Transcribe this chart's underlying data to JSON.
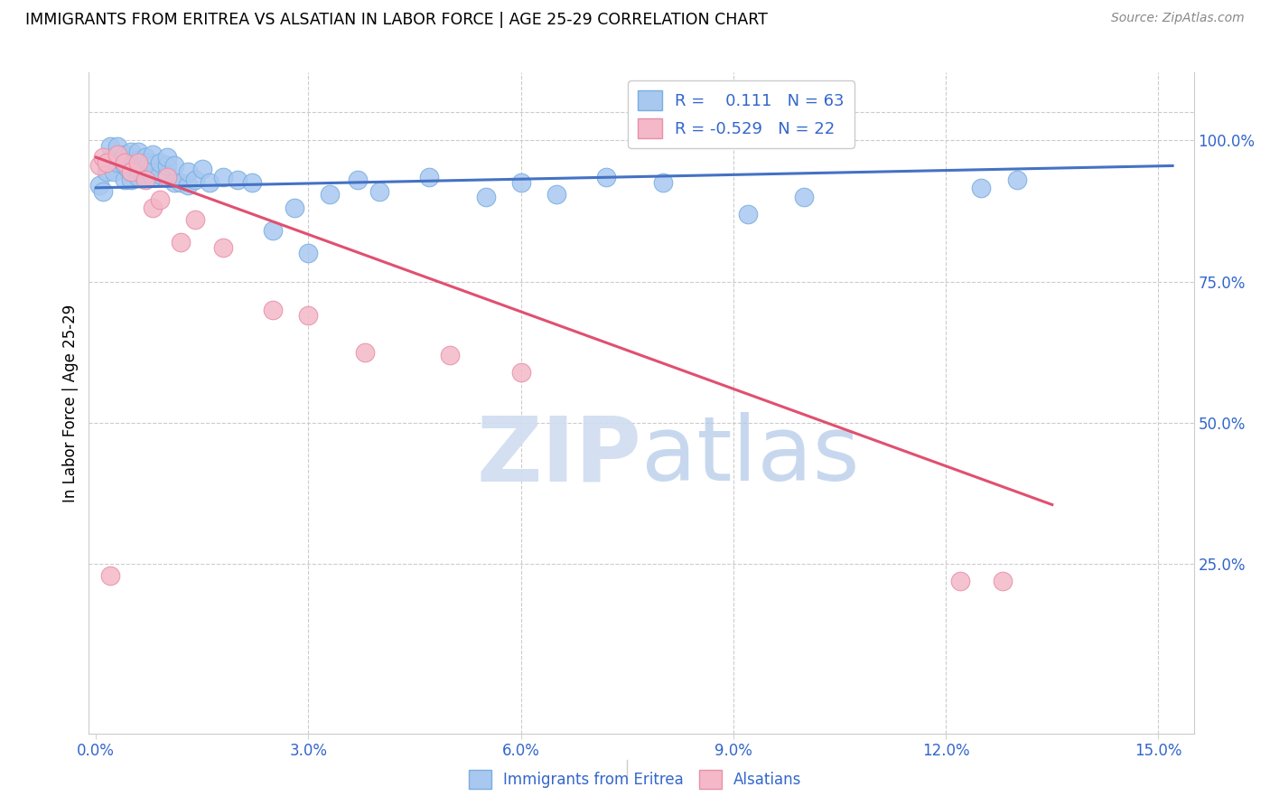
{
  "title": "IMMIGRANTS FROM ERITREA VS ALSATIAN IN LABOR FORCE | AGE 25-29 CORRELATION CHART",
  "source": "Source: ZipAtlas.com",
  "ylabel": "In Labor Force | Age 25-29",
  "xlim": [
    -0.001,
    0.155
  ],
  "ylim": [
    -0.05,
    1.12
  ],
  "xticks": [
    0.0,
    0.03,
    0.06,
    0.09,
    0.12,
    0.15
  ],
  "xticklabels": [
    "0.0%",
    "3.0%",
    "6.0%",
    "9.0%",
    "12.0%",
    "15.0%"
  ],
  "yticks": [
    0.25,
    0.5,
    0.75,
    1.0
  ],
  "yticklabels": [
    "25.0%",
    "50.0%",
    "75.0%",
    "100.0%"
  ],
  "blue_r": "0.111",
  "blue_n": "63",
  "pink_r": "-0.529",
  "pink_n": "22",
  "blue_color": "#A8C8F0",
  "pink_color": "#F4B8C8",
  "blue_edge_color": "#7AAEE0",
  "pink_edge_color": "#E890A8",
  "blue_line_color": "#4472C4",
  "pink_line_color": "#E05070",
  "grid_color": "#CCCCCC",
  "watermark_color": "#D0DCF0",
  "blue_dots_x": [
    0.0005,
    0.001,
    0.0015,
    0.002,
    0.002,
    0.0025,
    0.003,
    0.003,
    0.003,
    0.0035,
    0.004,
    0.004,
    0.004,
    0.0045,
    0.005,
    0.005,
    0.005,
    0.005,
    0.0055,
    0.006,
    0.006,
    0.006,
    0.006,
    0.0065,
    0.007,
    0.007,
    0.007,
    0.0075,
    0.008,
    0.008,
    0.008,
    0.009,
    0.009,
    0.01,
    0.01,
    0.01,
    0.011,
    0.011,
    0.012,
    0.013,
    0.013,
    0.014,
    0.015,
    0.016,
    0.018,
    0.02,
    0.022,
    0.025,
    0.028,
    0.03,
    0.033,
    0.037,
    0.04,
    0.047,
    0.055,
    0.06,
    0.065,
    0.072,
    0.08,
    0.092,
    0.1,
    0.125,
    0.13
  ],
  "blue_dots_y": [
    0.92,
    0.91,
    0.945,
    0.965,
    0.99,
    0.945,
    0.96,
    0.975,
    0.99,
    0.965,
    0.93,
    0.955,
    0.975,
    0.95,
    0.93,
    0.945,
    0.965,
    0.98,
    0.96,
    0.935,
    0.95,
    0.965,
    0.98,
    0.955,
    0.935,
    0.95,
    0.97,
    0.96,
    0.935,
    0.955,
    0.975,
    0.94,
    0.96,
    0.94,
    0.955,
    0.97,
    0.925,
    0.955,
    0.925,
    0.92,
    0.945,
    0.93,
    0.95,
    0.925,
    0.935,
    0.93,
    0.925,
    0.84,
    0.88,
    0.8,
    0.905,
    0.93,
    0.91,
    0.935,
    0.9,
    0.925,
    0.905,
    0.935,
    0.925,
    0.87,
    0.9,
    0.915,
    0.93
  ],
  "pink_dots_x": [
    0.0005,
    0.001,
    0.0015,
    0.002,
    0.003,
    0.004,
    0.005,
    0.006,
    0.007,
    0.008,
    0.009,
    0.01,
    0.012,
    0.014,
    0.018,
    0.025,
    0.03,
    0.038,
    0.05,
    0.06,
    0.122,
    0.128
  ],
  "pink_dots_y": [
    0.955,
    0.97,
    0.96,
    0.23,
    0.975,
    0.96,
    0.945,
    0.96,
    0.93,
    0.88,
    0.895,
    0.935,
    0.82,
    0.86,
    0.81,
    0.7,
    0.69,
    0.625,
    0.62,
    0.59,
    0.22,
    0.22
  ],
  "blue_trend_x": [
    0.0,
    0.152
  ],
  "blue_trend_y": [
    0.916,
    0.955
  ],
  "pink_trend_x": [
    0.0,
    0.135
  ],
  "pink_trend_y": [
    0.97,
    0.355
  ]
}
